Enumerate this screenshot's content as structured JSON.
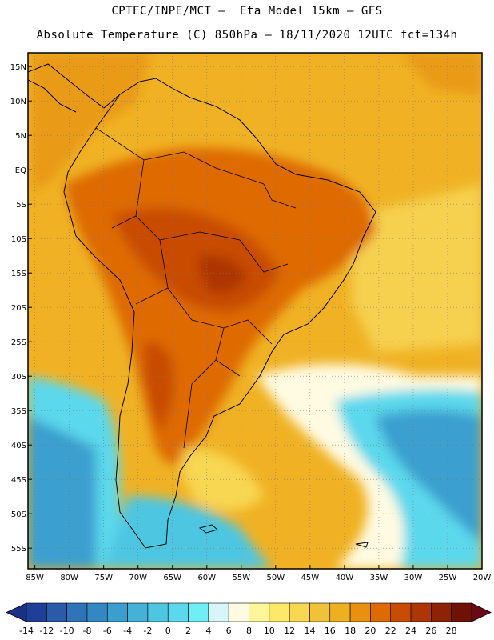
{
  "header": {
    "line1": "CPTEC/INPE/MCT —  Eta Model 15km — GFS",
    "line2": "Absolute Temperature (C) 850hPa — 18/11/2020 12UTC fct=134h"
  },
  "map": {
    "lat_ticks": [
      "15N",
      "10N",
      "5N",
      "EQ",
      "5S",
      "10S",
      "15S",
      "20S",
      "25S",
      "30S",
      "35S",
      "40S",
      "45S",
      "50S",
      "55S"
    ],
    "lon_ticks": [
      "85W",
      "80W",
      "75W",
      "70W",
      "65W",
      "60W",
      "55W",
      "50W",
      "45W",
      "40W",
      "35W",
      "30W",
      "25W",
      "20W"
    ],
    "lat_range": [
      17,
      -58
    ],
    "lon_range": [
      -86,
      -20
    ]
  },
  "colorbar": {
    "labels": [
      "-14",
      "-12",
      "-10",
      "-8",
      "-6",
      "-4",
      "-2",
      "0",
      "2",
      "4",
      "6",
      "8",
      "10",
      "12",
      "14",
      "16",
      "18",
      "20",
      "22",
      "24",
      "26",
      "28"
    ],
    "colors": [
      "#1f3f96",
      "#2a5aa8",
      "#2f73b8",
      "#3388c4",
      "#3a9fcf",
      "#44b2d8",
      "#4ec6e2",
      "#5bd8ec",
      "#6feef6",
      "#d6f6fa",
      "#fffbe2",
      "#fff59a",
      "#fde86a",
      "#f8d752",
      "#f0c23a",
      "#edb020",
      "#e99010",
      "#de6a06",
      "#c84c04",
      "#ad3604",
      "#8e2204",
      "#6e1206"
    ],
    "under_color": "#1c2f86",
    "over_color": "#6a0a18"
  }
}
